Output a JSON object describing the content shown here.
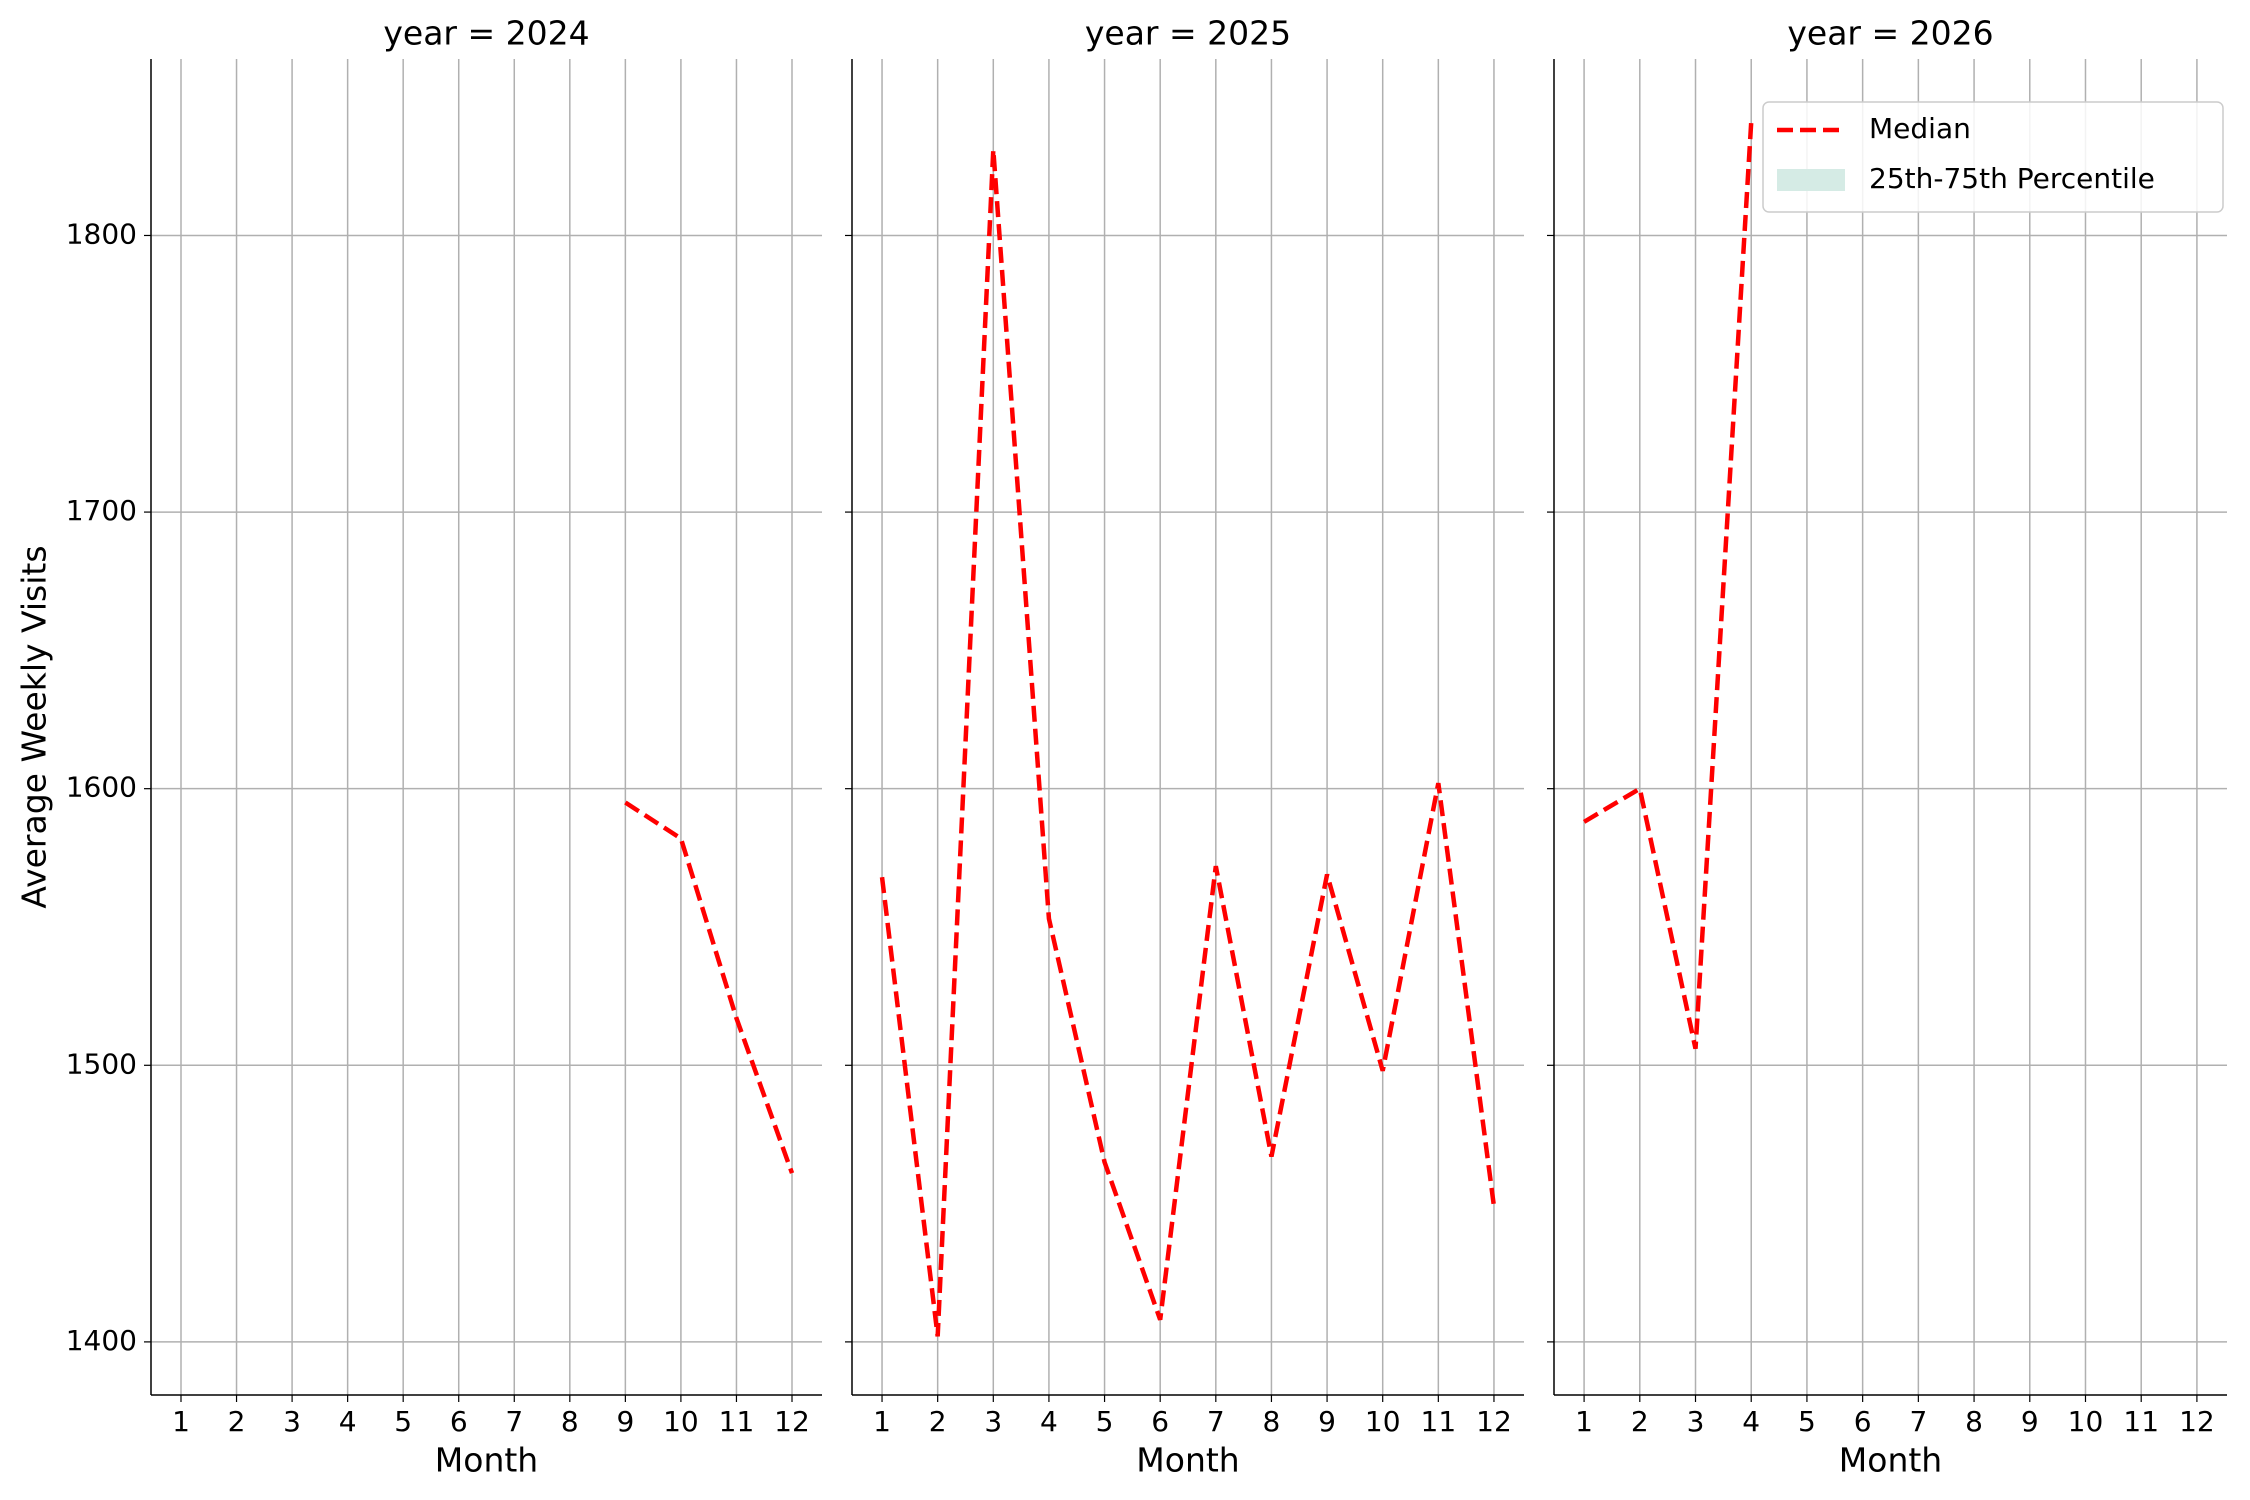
{
  "chart_data": [
    {
      "type": "line",
      "title": "year = 2024",
      "xlabel": "Month",
      "ylabel": "Average Weekly Visits",
      "x": [
        9,
        10,
        11,
        12
      ],
      "series": [
        {
          "name": "Median",
          "color": "#ff0000",
          "values": [
            1595,
            1582,
            1517,
            1461
          ]
        }
      ],
      "xlim": [
        0.46,
        12.54
      ],
      "xticks": [
        1,
        2,
        3,
        4,
        5,
        6,
        7,
        8,
        9,
        10,
        11,
        12
      ],
      "ylim": [
        1380.8,
        1863.8
      ],
      "yticks": [
        1400,
        1500,
        1600,
        1700,
        1800
      ],
      "grid": true
    },
    {
      "type": "line",
      "title": "year = 2025",
      "xlabel": "Month",
      "x": [
        1,
        2,
        3,
        4,
        5,
        6,
        7,
        8,
        9,
        10,
        11,
        12
      ],
      "series": [
        {
          "name": "Median",
          "color": "#ff0000",
          "values": [
            1568,
            1402,
            1831,
            1553,
            1465,
            1408,
            1572,
            1467,
            1569,
            1498,
            1602,
            1449
          ]
        }
      ],
      "xlim": [
        0.46,
        12.54
      ],
      "xticks": [
        1,
        2,
        3,
        4,
        5,
        6,
        7,
        8,
        9,
        10,
        11,
        12
      ],
      "ylim": [
        1380.8,
        1863.8
      ],
      "yticks": [
        1400,
        1500,
        1600,
        1700,
        1800
      ],
      "grid": true
    },
    {
      "type": "line",
      "title": "year = 2026",
      "xlabel": "Month",
      "x": [
        1,
        2,
        3,
        4
      ],
      "series": [
        {
          "name": "Median",
          "color": "#ff0000",
          "values": [
            1588,
            1600,
            1506,
            1841
          ]
        }
      ],
      "band": {
        "name": "25th-75th Percentile",
        "color": "#d5ebe5"
      },
      "legend": "upper right",
      "xlim": [
        0.46,
        12.54
      ],
      "xticks": [
        1,
        2,
        3,
        4,
        5,
        6,
        7,
        8,
        9,
        10,
        11,
        12
      ],
      "ylim": [
        1380.8,
        1863.8
      ],
      "yticks": [
        1400,
        1500,
        1600,
        1700,
        1800
      ],
      "grid": true
    }
  ]
}
